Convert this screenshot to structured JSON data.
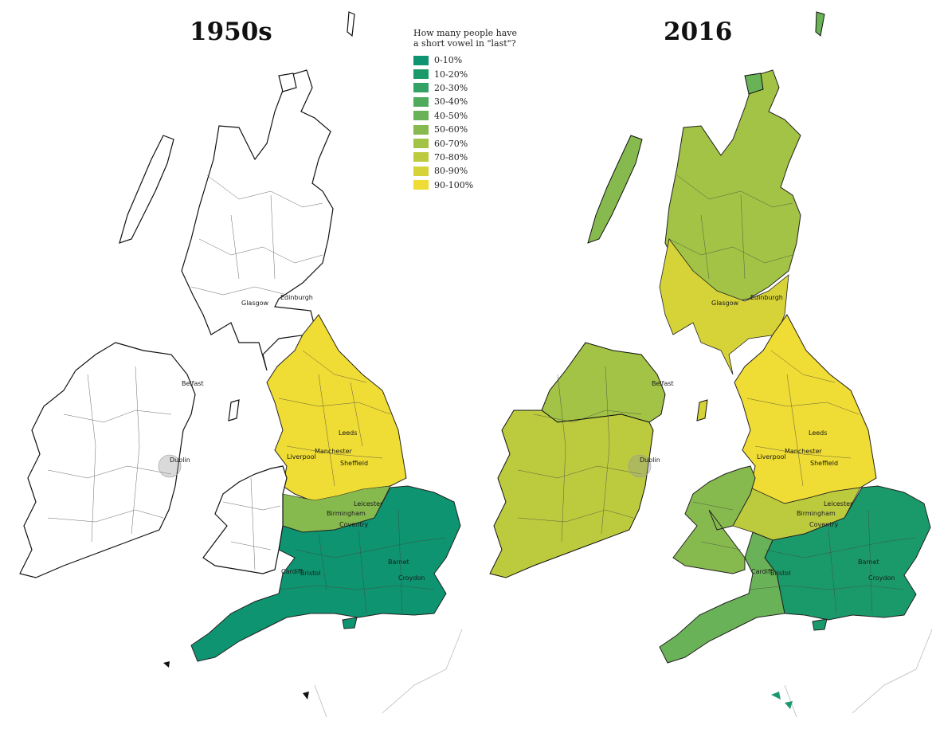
{
  "maps": [
    {
      "title": "1950s"
    },
    {
      "title": "2016"
    }
  ],
  "legend": {
    "title_lines": [
      "How many people have",
      "a short vowel in \"last\"?"
    ],
    "items": [
      {
        "label": "0-10%",
        "color": "#0e9470"
      },
      {
        "label": "10-20%",
        "color": "#1a9a6a"
      },
      {
        "label": "20-30%",
        "color": "#33a265"
      },
      {
        "label": "30-40%",
        "color": "#4fab5e"
      },
      {
        "label": "40-50%",
        "color": "#69b257"
      },
      {
        "label": "50-60%",
        "color": "#87ba4e"
      },
      {
        "label": "60-70%",
        "color": "#a2c345"
      },
      {
        "label": "70-80%",
        "color": "#bccb3e"
      },
      {
        "label": "80-90%",
        "color": "#d6d338"
      },
      {
        "label": "90-100%",
        "color": "#efdc34"
      }
    ]
  },
  "cities": [
    "Glasgow",
    "Edinburgh",
    "Belfast",
    "Dublin",
    "Leeds",
    "Manchester",
    "Liverpool",
    "Sheffield",
    "Leicester",
    "Birmingham",
    "Coventry",
    "Cardiff",
    "Bristol",
    "Barnet",
    "Croydon"
  ]
}
